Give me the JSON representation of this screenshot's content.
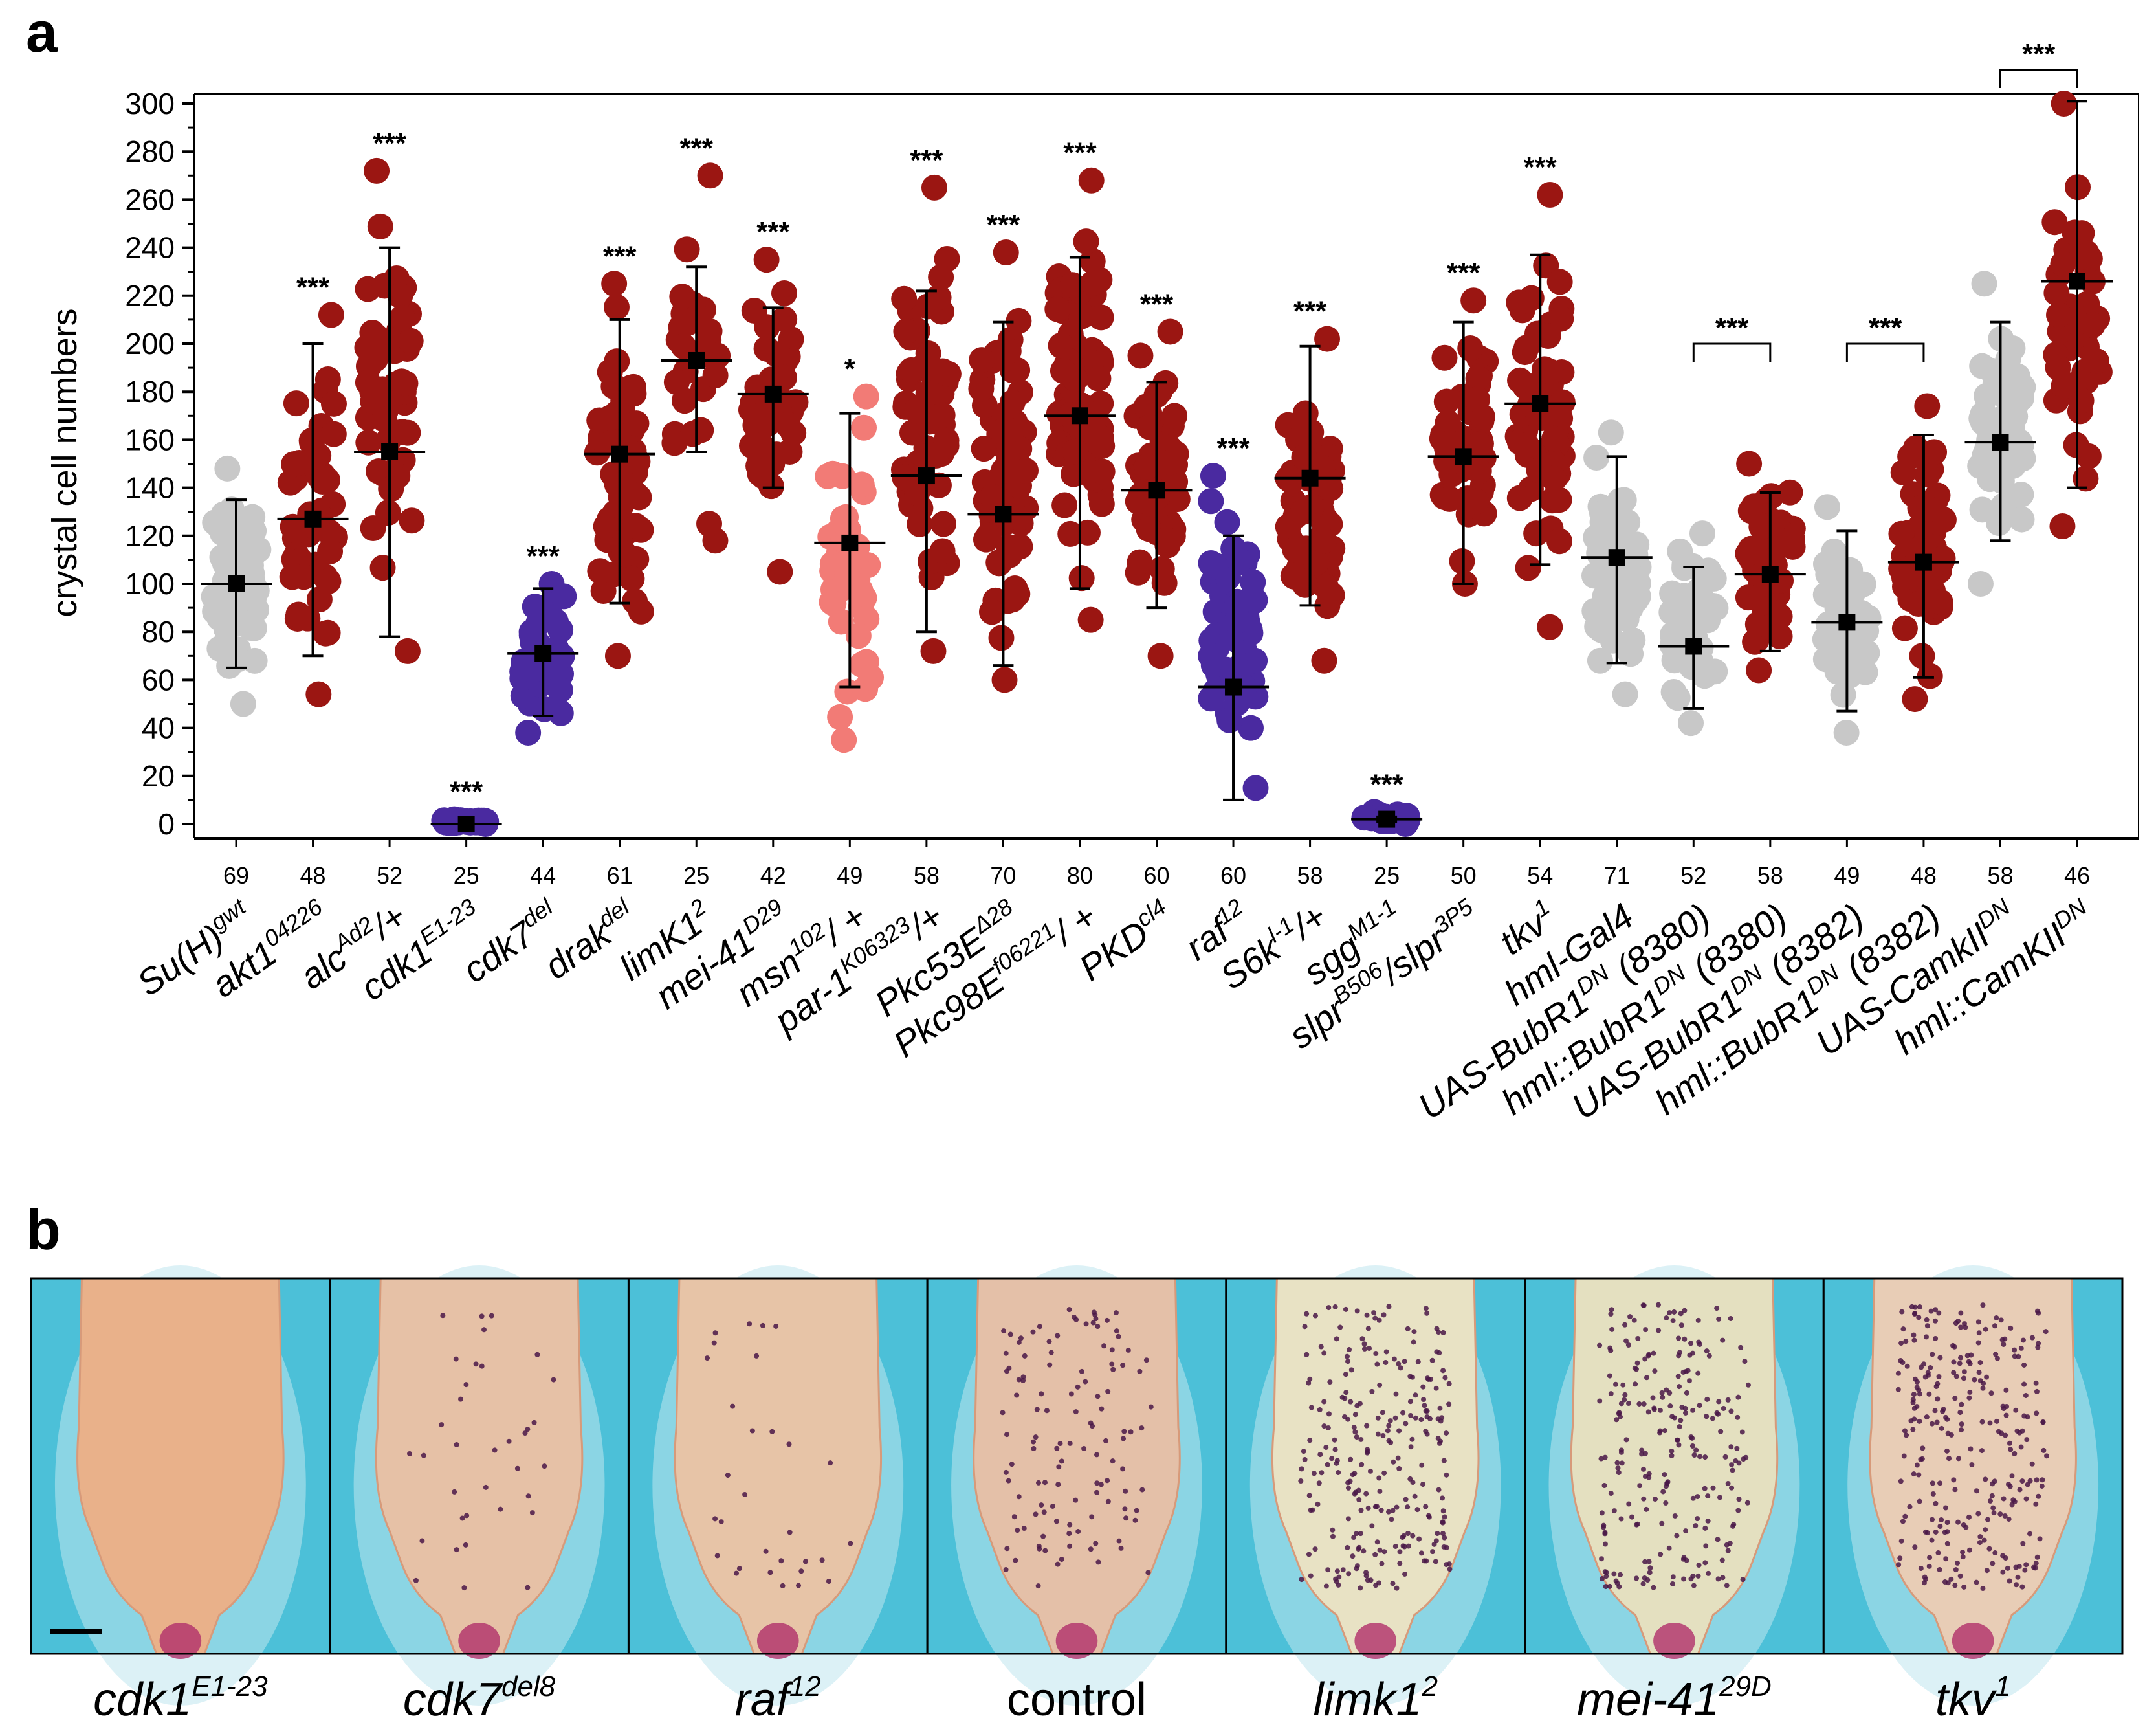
{
  "panel_a_letter": "a",
  "panel_b_letter": "b",
  "colors": {
    "control": "#c8c8c8",
    "increase": "#9b1612",
    "decrease": "#4a2aa0",
    "mild": "#f27b76",
    "mean_marker": "#000000",
    "photo_bg": "#4cc0d8",
    "larva": "#e8c3a8"
  },
  "chart_data": {
    "type": "scatter",
    "title": "",
    "xlabel": "",
    "ylabel": "crystal cell numbers",
    "ylim": [
      0,
      300
    ],
    "yticks": [
      "0",
      "20",
      "40",
      "60",
      "80",
      "100",
      "120",
      "140",
      "160",
      "180",
      "200",
      "220",
      "240",
      "260",
      "280",
      "300"
    ],
    "groups": [
      {
        "name": "Su(H)",
        "sup": "gwt",
        "suffix": "",
        "n": "69",
        "mean": 100,
        "sd_low": 65,
        "sd_high": 135,
        "min": 50,
        "max": 148,
        "color": "control",
        "sig": ""
      },
      {
        "name": "akt1",
        "sup": "04226",
        "suffix": "",
        "n": "48",
        "mean": 127,
        "sd_low": 70,
        "sd_high": 200,
        "min": 54,
        "max": 212,
        "color": "increase",
        "sig": "***"
      },
      {
        "name": "alc",
        "sup": "Ad2",
        "suffix": "/+",
        "n": "52",
        "mean": 155,
        "sd_low": 78,
        "sd_high": 240,
        "min": 72,
        "max": 272,
        "color": "increase",
        "sig": "***"
      },
      {
        "name": "cdk1",
        "sup": "E1-23",
        "suffix": "",
        "n": "25",
        "mean": 0,
        "sd_low": 0,
        "sd_high": 0,
        "min": 0,
        "max": 2,
        "color": "decrease",
        "sig": "***"
      },
      {
        "name": "cdk7",
        "sup": "del",
        "suffix": "",
        "n": "44",
        "mean": 71,
        "sd_low": 45,
        "sd_high": 98,
        "min": 38,
        "max": 100,
        "color": "decrease",
        "sig": "***"
      },
      {
        "name": "drak",
        "sup": "del",
        "suffix": "",
        "n": "61",
        "mean": 154,
        "sd_low": 92,
        "sd_high": 210,
        "min": 70,
        "max": 225,
        "color": "increase",
        "sig": "***"
      },
      {
        "name": "limK1",
        "sup": "2",
        "suffix": "",
        "n": "25",
        "mean": 193,
        "sd_low": 155,
        "sd_high": 232,
        "min": 118,
        "max": 270,
        "color": "increase",
        "sig": "***"
      },
      {
        "name": "mei-41",
        "sup": "D29",
        "suffix": "",
        "n": "42",
        "mean": 179,
        "sd_low": 140,
        "sd_high": 215,
        "min": 105,
        "max": 235,
        "color": "increase",
        "sig": "***"
      },
      {
        "name": "msn",
        "sup": "102",
        "suffix": "/ +",
        "n": "49",
        "mean": 117,
        "sd_low": 57,
        "sd_high": 171,
        "min": 35,
        "max": 178,
        "color": "mild",
        "sig": "*"
      },
      {
        "name": "par-1",
        "sup": "K06323",
        "suffix": "/+",
        "n": "58",
        "mean": 145,
        "sd_low": 80,
        "sd_high": 222,
        "min": 72,
        "max": 265,
        "color": "increase",
        "sig": "***"
      },
      {
        "name": "Pkc53E",
        "sup": "Δ28",
        "suffix": "",
        "n": "70",
        "mean": 129,
        "sd_low": 66,
        "sd_high": 209,
        "min": 60,
        "max": 238,
        "color": "increase",
        "sig": "***"
      },
      {
        "name": "Pkc98E",
        "sup": "f06221",
        "suffix": "/ +",
        "n": "80",
        "mean": 170,
        "sd_low": 98,
        "sd_high": 236,
        "min": 85,
        "max": 268,
        "color": "increase",
        "sig": "***"
      },
      {
        "name": "PKD",
        "sup": "cl4",
        "suffix": "",
        "n": "60",
        "mean": 139,
        "sd_low": 90,
        "sd_high": 184,
        "min": 70,
        "max": 205,
        "color": "increase",
        "sig": "***"
      },
      {
        "name": "raf",
        "sup": "12",
        "suffix": "",
        "n": "60",
        "mean": 57,
        "sd_low": 10,
        "sd_high": 120,
        "min": 15,
        "max": 145,
        "color": "decrease",
        "sig": "***"
      },
      {
        "name": "S6k",
        "sup": "l-1",
        "suffix": "/+",
        "n": "58",
        "mean": 144,
        "sd_low": 91,
        "sd_high": 199,
        "min": 68,
        "max": 202,
        "color": "increase",
        "sig": "***"
      },
      {
        "name": "sgg",
        "sup": "M1-1",
        "suffix": "",
        "n": "25",
        "mean": 2,
        "sd_low": 1,
        "sd_high": 3,
        "min": 0,
        "max": 5,
        "color": "decrease",
        "sig": "***"
      },
      {
        "name": "slpr",
        "sup": "B506",
        "suffix": "/slpr",
        "sup2": "3P5",
        "n": "50",
        "mean": 153,
        "sd_low": 100,
        "sd_high": 209,
        "min": 100,
        "max": 218,
        "color": "increase",
        "sig": "***"
      },
      {
        "name": "tkv",
        "sup": "1",
        "suffix": "",
        "n": "54",
        "mean": 175,
        "sd_low": 108,
        "sd_high": 237,
        "min": 82,
        "max": 262,
        "color": "increase",
        "sig": "***"
      },
      {
        "name": "hml-Gal4",
        "sup": "",
        "suffix": "",
        "n": "71",
        "mean": 111,
        "sd_low": 67,
        "sd_high": 153,
        "min": 54,
        "max": 163,
        "color": "control",
        "sig": ""
      },
      {
        "name": "UAS-BubR1",
        "sup": "DN",
        "suffix": " (8380)",
        "n": "52",
        "mean": 74,
        "sd_low": 48,
        "sd_high": 107,
        "min": 42,
        "max": 121,
        "color": "control",
        "sig": ""
      },
      {
        "name": "hml::BubR1",
        "sup": "DN",
        "suffix": " (8380)",
        "n": "58",
        "mean": 104,
        "sd_low": 72,
        "sd_high": 138,
        "min": 64,
        "max": 150,
        "color": "increase",
        "sig": ""
      },
      {
        "name": "UAS-BubR1",
        "sup": "DN",
        "suffix": " (8382)",
        "n": "49",
        "mean": 84,
        "sd_low": 47,
        "sd_high": 122,
        "min": 38,
        "max": 132,
        "color": "control",
        "sig": ""
      },
      {
        "name": "hml::BubR1",
        "sup": "DN",
        "suffix": " (8382)",
        "n": "48",
        "mean": 109,
        "sd_low": 61,
        "sd_high": 162,
        "min": 52,
        "max": 174,
        "color": "increase",
        "sig": ""
      },
      {
        "name": "UAS-CamkII",
        "sup": "DN",
        "suffix": "",
        "n": "58",
        "mean": 159,
        "sd_low": 118,
        "sd_high": 209,
        "min": 100,
        "max": 225,
        "color": "control",
        "sig": ""
      },
      {
        "name": "hml::CamKII",
        "sup": "DN",
        "suffix": "",
        "n": "46",
        "mean": 226,
        "sd_low": 140,
        "sd_high": 301,
        "min": 124,
        "max": 300,
        "color": "increase",
        "sig": ""
      }
    ],
    "brackets": [
      {
        "from": 19,
        "to": 20,
        "label": "***",
        "level": 200
      },
      {
        "from": 21,
        "to": 22,
        "label": "***",
        "level": 200
      },
      {
        "from": 23,
        "to": 24,
        "label": "***",
        "level": 314
      }
    ]
  },
  "panel_b": {
    "images": [
      {
        "label": "cdk1",
        "sup": "E1-23",
        "italic": true,
        "spots": 0,
        "tint": "#e9b18a"
      },
      {
        "label": "cdk7",
        "sup": "del8",
        "italic": true,
        "spots": 35,
        "tint": "#e6c1a6"
      },
      {
        "label": "raf",
        "sup": "12",
        "italic": true,
        "spots": 30,
        "tint": "#e7c4a7"
      },
      {
        "label": "control",
        "sup": "",
        "italic": false,
        "spots": 120,
        "tint": "#e4c0a8"
      },
      {
        "label": "limk1",
        "sup": "2",
        "italic": true,
        "spots": 260,
        "tint": "#e8e2c4"
      },
      {
        "label": "mei-41",
        "sup": "29D",
        "italic": true,
        "spots": 240,
        "tint": "#e4e0c0"
      },
      {
        "label": "tkv",
        "sup": "1",
        "italic": true,
        "spots": 280,
        "tint": "#e8cdb6"
      }
    ]
  }
}
